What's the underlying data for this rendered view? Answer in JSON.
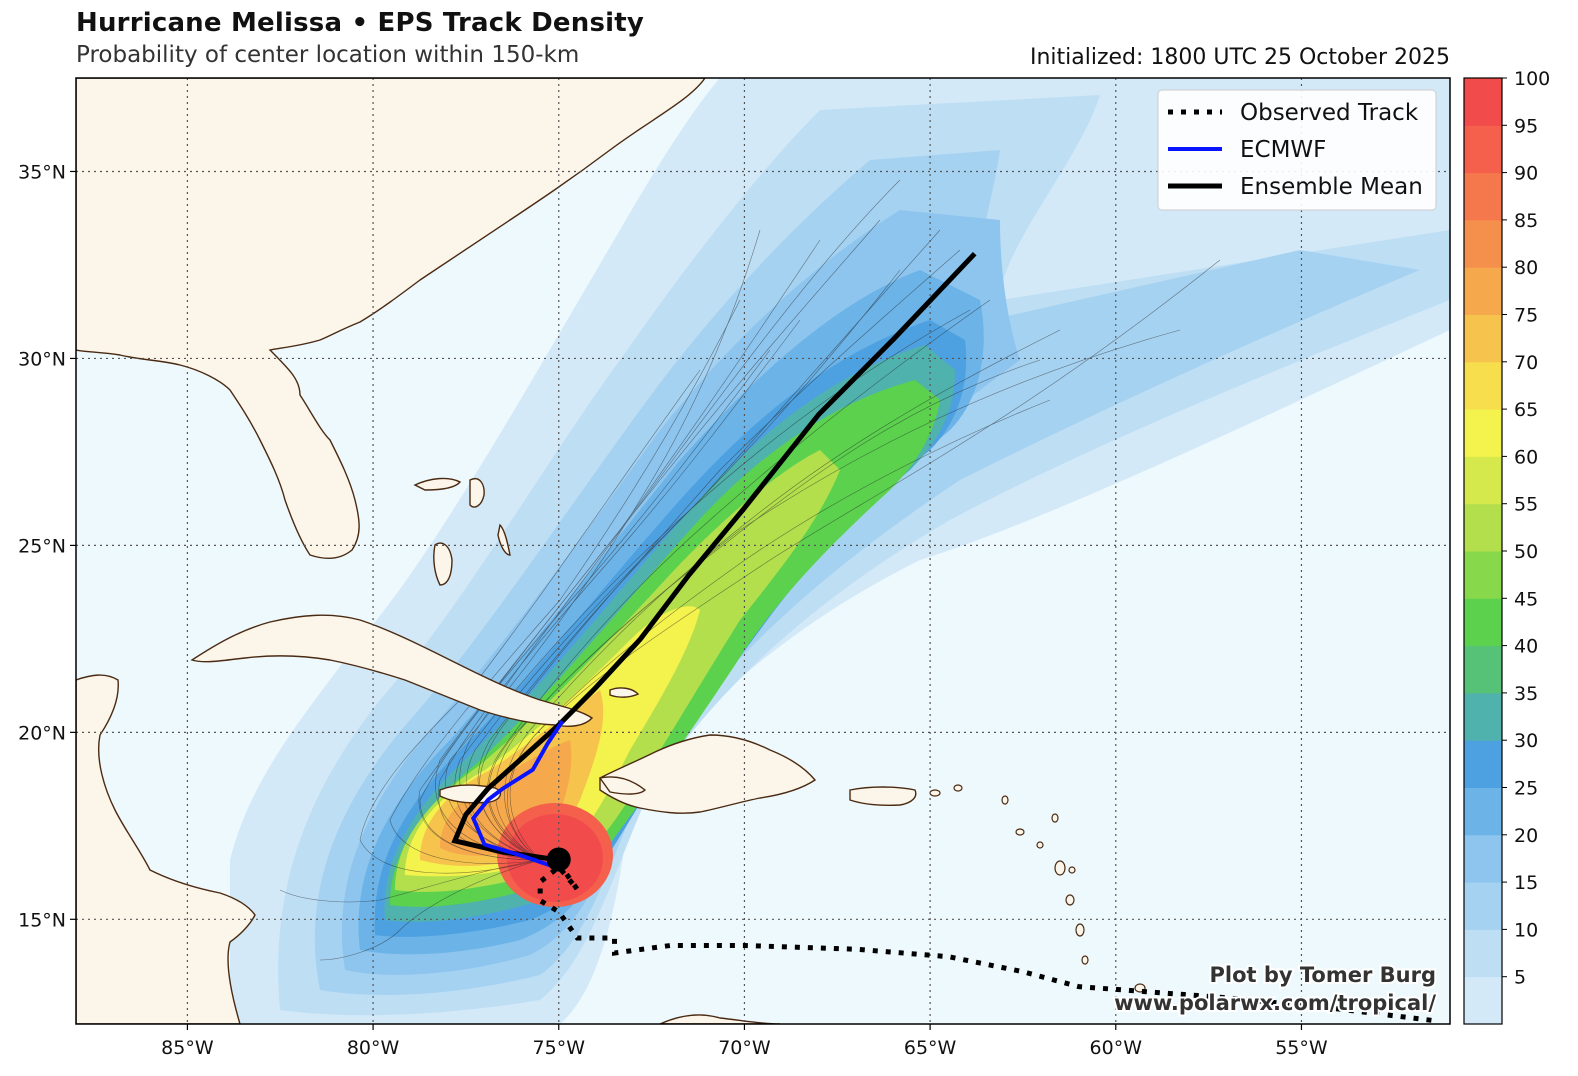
{
  "header": {
    "title": "Hurricane Melissa • EPS Track Density",
    "subtitle": "Probability of center location within 150-km",
    "initialized": "Initialized: 1800 UTC 25 October 2025"
  },
  "map": {
    "lon_range": [
      -88,
      -51
    ],
    "lat_range": [
      12.2,
      37.5
    ],
    "lon_ticks": [
      {
        "lon": -85,
        "label": "85°W"
      },
      {
        "lon": -80,
        "label": "80°W"
      },
      {
        "lon": -75,
        "label": "75°W"
      },
      {
        "lon": -70,
        "label": "70°W"
      },
      {
        "lon": -65,
        "label": "65°W"
      },
      {
        "lon": -60,
        "label": "60°W"
      },
      {
        "lon": -55,
        "label": "55°W"
      }
    ],
    "lat_ticks": [
      {
        "lat": 35,
        "label": "35°N"
      },
      {
        "lat": 30,
        "label": "30°N"
      },
      {
        "lat": 25,
        "label": "25°N"
      },
      {
        "lat": 20,
        "label": "20°N"
      },
      {
        "lat": 15,
        "label": "15°N"
      }
    ],
    "colors": {
      "ocean": "#eef9fd",
      "land": "#fcf5e9",
      "coastline": "#4a2a12",
      "grid": "#555555"
    }
  },
  "legend": {
    "items": [
      {
        "label": "Observed Track",
        "style": "dotted",
        "color": "#000000"
      },
      {
        "label": "ECMWF",
        "style": "solid",
        "color": "#0a14ff"
      },
      {
        "label": "Ensemble Mean",
        "style": "solid",
        "color": "#000000"
      }
    ]
  },
  "colorbar": {
    "levels": [
      5,
      10,
      15,
      20,
      25,
      30,
      35,
      40,
      45,
      50,
      55,
      60,
      65,
      70,
      75,
      80,
      85,
      90,
      95,
      100
    ],
    "colors": [
      "#d3e9f8",
      "#bedef4",
      "#a6d2f1",
      "#8ec5ee",
      "#6cb3e8",
      "#4ea1e0",
      "#50b2ad",
      "#55c277",
      "#5bd14e",
      "#88d84c",
      "#b3df4d",
      "#d5e94c",
      "#f4f24c",
      "#f6de4c",
      "#f6c44c",
      "#f6a84c",
      "#f5904c",
      "#f5784c",
      "#f4604c",
      "#f24b4c"
    ]
  },
  "tracks": {
    "observed": [
      {
        "lon": -51.5,
        "lat": 12.3
      },
      {
        "lon": -54,
        "lat": 12.6
      },
      {
        "lon": -57,
        "lat": 12.9
      },
      {
        "lon": -61,
        "lat": 13.2
      },
      {
        "lon": -62.5,
        "lat": 13.6
      },
      {
        "lon": -64.5,
        "lat": 14.0
      },
      {
        "lon": -67,
        "lat": 14.2
      },
      {
        "lon": -70,
        "lat": 14.3
      },
      {
        "lon": -72,
        "lat": 14.3
      },
      {
        "lon": -73.5,
        "lat": 14.1
      },
      {
        "lon": -73.5,
        "lat": 14.5
      },
      {
        "lon": -74.5,
        "lat": 14.5
      },
      {
        "lon": -75.0,
        "lat": 15.2
      },
      {
        "lon": -75.5,
        "lat": 15.5
      },
      {
        "lon": -75.5,
        "lat": 16.0
      },
      {
        "lon": -75.0,
        "lat": 16.4
      },
      {
        "lon": -74.5,
        "lat": 15.8
      },
      {
        "lon": -75.0,
        "lat": 16.5
      }
    ],
    "ecmwf": [
      {
        "lon": -75.1,
        "lat": 16.4
      },
      {
        "lon": -76.0,
        "lat": 16.7
      },
      {
        "lon": -77.0,
        "lat": 17.0
      },
      {
        "lon": -77.3,
        "lat": 17.7
      },
      {
        "lon": -76.9,
        "lat": 18.2
      },
      {
        "lon": -76.5,
        "lat": 18.5
      },
      {
        "lon": -75.7,
        "lat": 19.0
      },
      {
        "lon": -75.3,
        "lat": 19.7
      },
      {
        "lon": -74.9,
        "lat": 20.3
      }
    ],
    "ensemble_mean": [
      {
        "lon": -75.1,
        "lat": 16.6
      },
      {
        "lon": -76.5,
        "lat": 16.8
      },
      {
        "lon": -77.8,
        "lat": 17.1
      },
      {
        "lon": -77.5,
        "lat": 17.8
      },
      {
        "lon": -76.9,
        "lat": 18.5
      },
      {
        "lon": -76.0,
        "lat": 19.3
      },
      {
        "lon": -75.0,
        "lat": 20.2
      },
      {
        "lon": -74.0,
        "lat": 21.2
      },
      {
        "lon": -72.8,
        "lat": 22.5
      },
      {
        "lon": -71.5,
        "lat": 24.2
      },
      {
        "lon": -70.0,
        "lat": 26.0
      },
      {
        "lon": -68.0,
        "lat": 28.5
      },
      {
        "lon": -66.0,
        "lat": 30.5
      },
      {
        "lon": -63.8,
        "lat": 32.8
      }
    ],
    "current_position": {
      "lon": -75.0,
      "lat": 16.6
    }
  },
  "credits": {
    "line1": "Plot by Tomer Burg",
    "line2": "www.polarwx.com/tropical/"
  }
}
